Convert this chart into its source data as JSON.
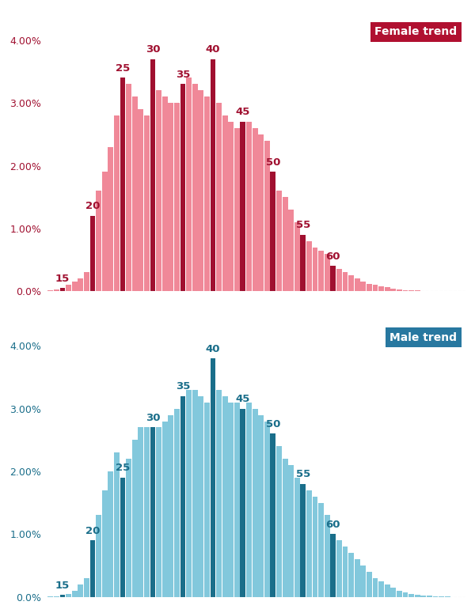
{
  "female_color_light": "#F08898",
  "female_color_dark": "#A01030",
  "male_color_light": "#82C8DC",
  "male_color_dark": "#1A6E8A",
  "female_label": "Female trend",
  "male_label": "Male trend",
  "female_label_bg": "#B01030",
  "male_label_bg": "#2878A0",
  "ages": [
    13,
    14,
    15,
    16,
    17,
    18,
    19,
    20,
    21,
    22,
    23,
    24,
    25,
    26,
    27,
    28,
    29,
    30,
    31,
    32,
    33,
    34,
    35,
    36,
    37,
    38,
    39,
    40,
    41,
    42,
    43,
    44,
    45,
    46,
    47,
    48,
    49,
    50,
    51,
    52,
    53,
    54,
    55,
    56,
    57,
    58,
    59,
    60,
    61,
    62,
    63,
    64,
    65,
    66,
    67,
    68,
    69,
    70,
    71,
    72,
    73,
    74,
    75,
    76,
    77,
    78,
    79,
    80
  ],
  "female_values": [
    0.00015,
    0.0003,
    0.0005,
    0.001,
    0.0015,
    0.002,
    0.003,
    0.012,
    0.016,
    0.019,
    0.023,
    0.028,
    0.034,
    0.033,
    0.031,
    0.029,
    0.028,
    0.037,
    0.032,
    0.031,
    0.03,
    0.03,
    0.033,
    0.034,
    0.033,
    0.032,
    0.031,
    0.037,
    0.03,
    0.028,
    0.027,
    0.026,
    0.027,
    0.027,
    0.026,
    0.025,
    0.024,
    0.019,
    0.016,
    0.015,
    0.013,
    0.011,
    0.009,
    0.008,
    0.007,
    0.0065,
    0.006,
    0.004,
    0.0035,
    0.003,
    0.0025,
    0.002,
    0.0015,
    0.0012,
    0.001,
    0.0008,
    0.0006,
    0.0004,
    0.0003,
    0.0002,
    0.00015,
    0.0001,
    5e-05,
    3e-05,
    2e-05,
    1e-05,
    5e-06,
    2e-06
  ],
  "male_values": [
    5e-05,
    0.0001,
    0.0003,
    0.0005,
    0.001,
    0.002,
    0.003,
    0.009,
    0.013,
    0.017,
    0.02,
    0.023,
    0.019,
    0.022,
    0.025,
    0.027,
    0.027,
    0.027,
    0.027,
    0.028,
    0.029,
    0.03,
    0.032,
    0.033,
    0.033,
    0.032,
    0.031,
    0.038,
    0.033,
    0.032,
    0.031,
    0.031,
    0.03,
    0.031,
    0.03,
    0.029,
    0.028,
    0.026,
    0.024,
    0.022,
    0.021,
    0.019,
    0.018,
    0.017,
    0.016,
    0.015,
    0.013,
    0.01,
    0.009,
    0.008,
    0.007,
    0.006,
    0.005,
    0.004,
    0.003,
    0.0025,
    0.002,
    0.0015,
    0.001,
    0.0007,
    0.0005,
    0.0003,
    0.0002,
    0.00015,
    0.0001,
    5e-05,
    3e-05,
    1e-05
  ],
  "milestone_ages": [
    15,
    20,
    25,
    30,
    35,
    40,
    45,
    50,
    55,
    60
  ],
  "yticks": [
    0.0,
    0.01,
    0.02,
    0.03,
    0.04
  ],
  "ytick_labels": [
    "0.0%",
    "1.00%",
    "2.00%",
    "3.00%",
    "4.00%"
  ],
  "ylim": [
    0,
    0.0435
  ],
  "xlim_min": 12.5,
  "xlim_max": 82
}
